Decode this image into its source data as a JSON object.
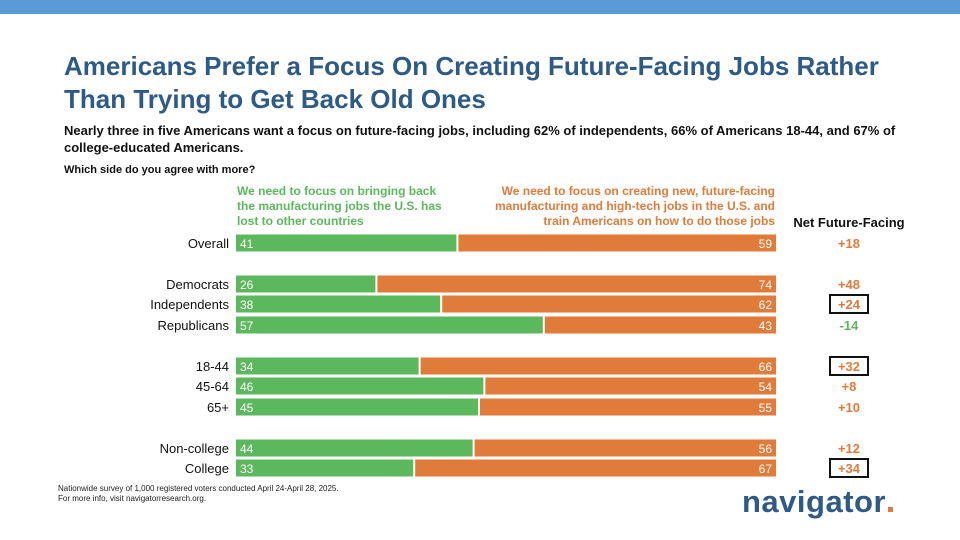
{
  "title": "Americans Prefer a Focus On Creating Future-Facing Jobs Rather Than Trying to Get Back Old Ones",
  "subtitle": "Nearly three in five Americans want a focus on future-facing jobs, including 62% of independents, 66% of Americans 18-44, and 67% of college-educated Americans.",
  "question": "Which side do you agree with more?",
  "footnote_line1": "Nationwide survey of 1,000 registered voters conducted April 24-April 28, 2025.",
  "footnote_line2": "For more info, visit navigatorresearch.org.",
  "logo_text": "navigator",
  "colors": {
    "bring_back": "#5cb85c",
    "future": "#e07b39",
    "title": "#2e5a87",
    "bar_top": "#5b9bd5"
  },
  "chart_data": {
    "type": "bar",
    "orientation": "horizontal",
    "stacked": true,
    "grid": false,
    "categories": [
      "Overall",
      "Democrats",
      "Independents",
      "Republicans",
      "18-44",
      "45-64",
      "65+",
      "Non-college",
      "College"
    ],
    "series": [
      {
        "name": "We need to focus on bringing back the manufacturing jobs the U.S. has lost to other countries",
        "values": [
          41,
          26,
          38,
          57,
          34,
          46,
          45,
          44,
          33
        ]
      },
      {
        "name": "We need to focus on creating new, future-facing manufacturing and high-tech jobs in the U.S. and train Americans on how to do those jobs",
        "values": [
          59,
          74,
          62,
          43,
          66,
          54,
          55,
          56,
          67
        ]
      }
    ],
    "net_header": "Net Future-Facing",
    "net_labels": [
      "+18",
      "+48",
      "+24",
      "-14",
      "+32",
      "+8",
      "+10",
      "+12",
      "+34"
    ],
    "net_boxed": [
      false,
      false,
      true,
      false,
      true,
      false,
      false,
      false,
      true
    ],
    "xlim": [
      0,
      100
    ]
  }
}
